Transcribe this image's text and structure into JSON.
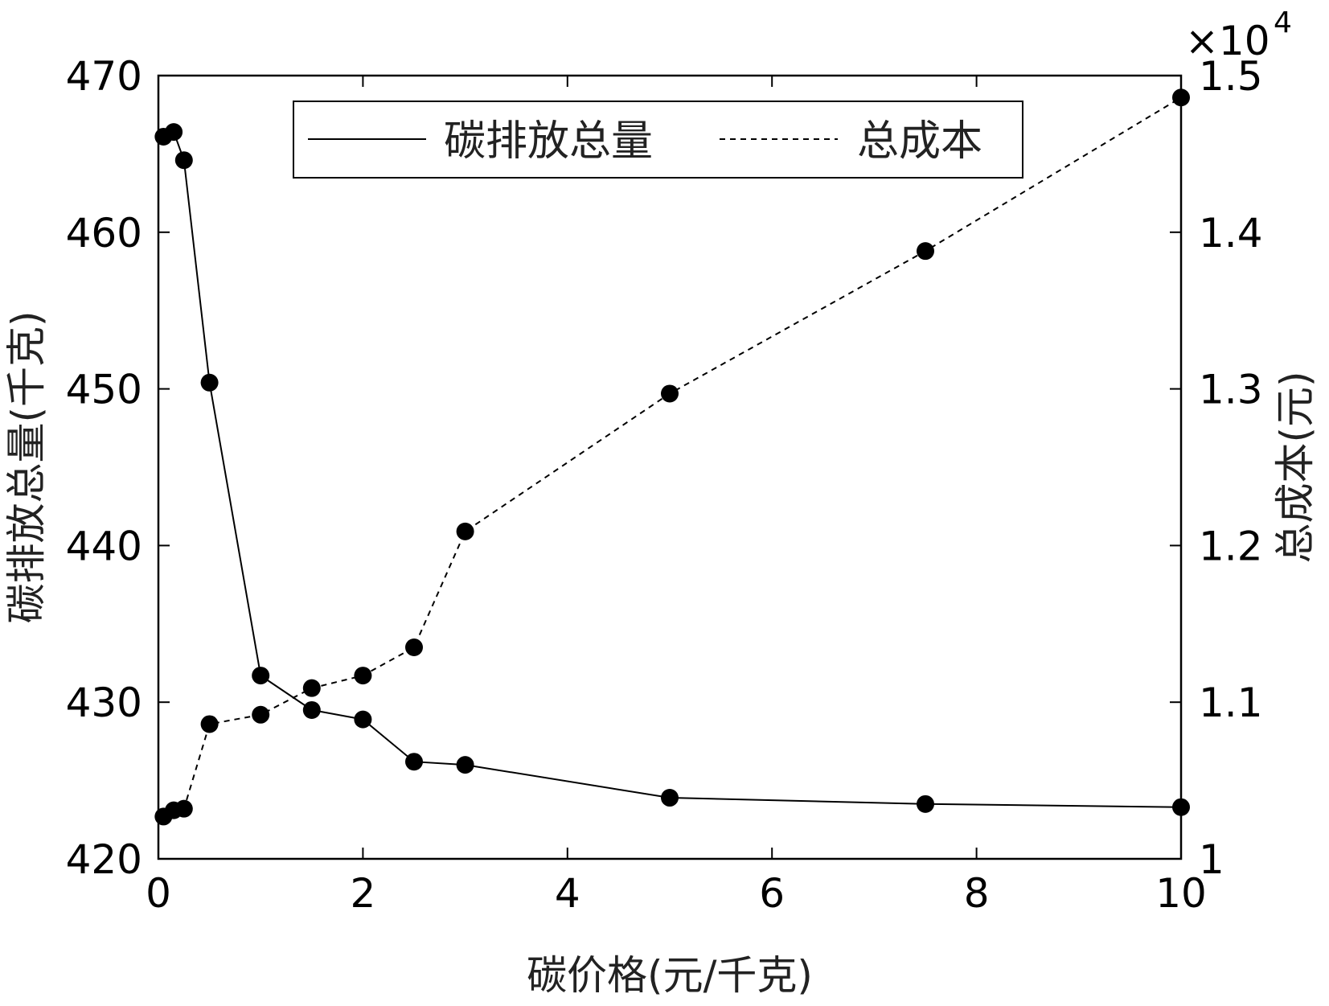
{
  "chart_data": {
    "type": "line",
    "xlabel": "碳价格(元/千克)",
    "ylabel_left": "碳排放总量(千克)",
    "ylabel_right": "总成本(元)",
    "xlim": [
      0,
      10
    ],
    "ylim_left": [
      420,
      470
    ],
    "ylim_right": [
      10000,
      15000
    ],
    "right_axis_exponent": "×10",
    "right_axis_exponent_power": "4",
    "x_ticks": [
      0,
      2,
      4,
      6,
      8,
      10
    ],
    "y_left_ticks": [
      420,
      430,
      440,
      450,
      460,
      470
    ],
    "y_right_ticks": [
      1,
      1.1,
      1.2,
      1.3,
      1.4,
      1.5
    ],
    "legend_position": "top-center",
    "grid": false,
    "series": [
      {
        "name": "碳排放总量",
        "axis": "left",
        "style": "solid",
        "x": [
          0.05,
          0.15,
          0.25,
          0.5,
          1,
          1.5,
          2,
          2.5,
          3,
          5,
          7.5,
          10
        ],
        "values": [
          466.1,
          466.4,
          464.6,
          450.4,
          431.7,
          429.5,
          428.9,
          426.2,
          426.0,
          423.9,
          423.5,
          423.3
        ]
      },
      {
        "name": "总成本",
        "axis": "right",
        "style": "dashed",
        "x": [
          0.05,
          0.15,
          0.25,
          0.5,
          1,
          1.5,
          2,
          2.5,
          3,
          5,
          7.5,
          10
        ],
        "values": [
          10270,
          10310,
          10320,
          10860,
          10920,
          11090,
          11170,
          11350,
          12090,
          12970,
          13880,
          14860
        ]
      }
    ]
  }
}
